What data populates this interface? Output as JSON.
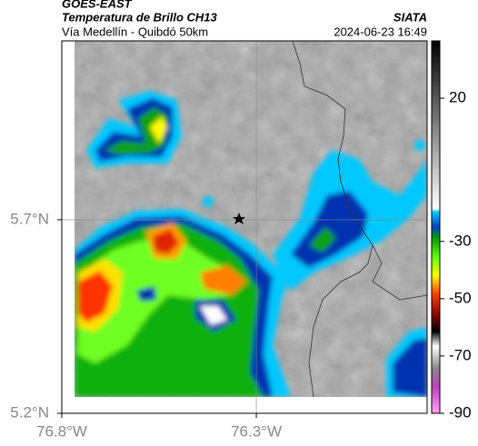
{
  "header": {
    "title": "GOES-EAST",
    "subtitle": "Temperatura de Brillo CH13",
    "route": "Vía Medellín - Quibdó 50km",
    "source": "SIATA",
    "timestamp": "2024-06-23 16:49"
  },
  "map": {
    "xlim": [
      -76.8,
      -75.861
    ],
    "ylim": [
      5.2,
      6.162
    ],
    "xticks": [
      {
        "value": -76.8,
        "label": "76.8°W"
      },
      {
        "value": -76.3,
        "label": "76.3°W"
      }
    ],
    "yticks": [
      {
        "value": 5.2,
        "label": "5.2°N"
      },
      {
        "value": 5.7,
        "label": "5.7°N"
      }
    ],
    "grid": true
  },
  "colorbar": {
    "lim": [
      -90,
      40
    ],
    "ticks": [
      20,
      -30,
      -50,
      -70,
      -90
    ]
  }
}
